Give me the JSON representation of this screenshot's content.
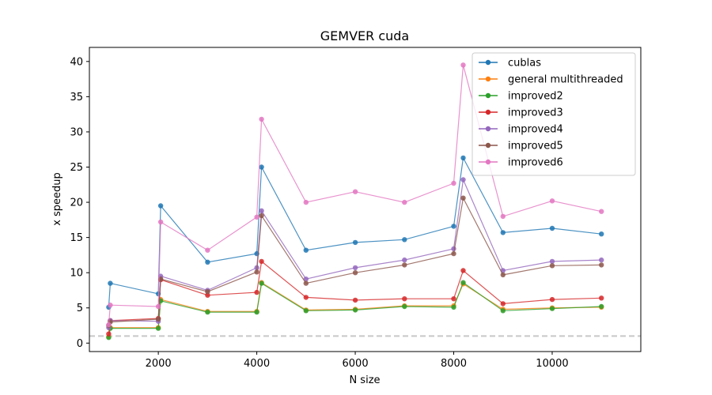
{
  "chart_data": {
    "type": "line",
    "title": "GEMVER cuda",
    "xlabel": "N size",
    "ylabel": "x speedup",
    "xlim": [
      600,
      11800
    ],
    "ylim": [
      -1.2,
      42
    ],
    "xticks": [
      2000,
      4000,
      6000,
      8000,
      10000
    ],
    "yticks": [
      0,
      5,
      10,
      15,
      20,
      25,
      30,
      35,
      40
    ],
    "reference_line": {
      "y": 1,
      "style": "dashed",
      "color": "#c8c8c8"
    },
    "legend_position": "top-right",
    "x": [
      992,
      1024,
      2000,
      2048,
      3000,
      4000,
      4096,
      5000,
      6000,
      7000,
      8000,
      8192,
      9000,
      10000,
      11000
    ],
    "series": [
      {
        "name": "cublas",
        "color": "#1f77b4",
        "values": [
          5.1,
          8.5,
          7.0,
          19.5,
          11.5,
          12.7,
          25.0,
          13.2,
          14.3,
          14.7,
          16.6,
          26.3,
          15.7,
          16.3,
          15.5
        ]
      },
      {
        "name": "general multithreaded",
        "color": "#ff7f0e",
        "values": [
          0.9,
          2.2,
          2.2,
          6.2,
          4.5,
          4.5,
          8.6,
          4.7,
          4.8,
          5.3,
          5.3,
          8.4,
          4.8,
          5.0,
          5.1
        ]
      },
      {
        "name": "improved2",
        "color": "#2ca02c",
        "values": [
          0.8,
          2.1,
          2.1,
          6.0,
          4.4,
          4.4,
          8.5,
          4.6,
          4.7,
          5.2,
          5.1,
          8.6,
          4.6,
          4.9,
          5.2
        ]
      },
      {
        "name": "improved3",
        "color": "#d62728",
        "values": [
          1.3,
          3.2,
          3.5,
          9.0,
          6.8,
          7.2,
          11.6,
          6.5,
          6.1,
          6.3,
          6.3,
          10.3,
          5.6,
          6.2,
          6.4
        ]
      },
      {
        "name": "improved4",
        "color": "#9467bd",
        "values": [
          2.2,
          3.2,
          3.1,
          9.5,
          7.5,
          10.7,
          18.8,
          9.1,
          10.7,
          11.8,
          13.4,
          23.2,
          10.3,
          11.6,
          11.8
        ]
      },
      {
        "name": "improved5",
        "color": "#8c564b",
        "values": [
          2.5,
          3.0,
          3.4,
          9.1,
          7.3,
          10.1,
          18.1,
          8.5,
          10.0,
          11.1,
          12.7,
          20.6,
          9.7,
          11.0,
          11.1
        ]
      },
      {
        "name": "improved6",
        "color": "#e377c2",
        "values": [
          2.6,
          5.4,
          5.2,
          17.2,
          13.2,
          17.9,
          31.8,
          20.0,
          21.5,
          20.0,
          22.7,
          39.5,
          18.0,
          20.2,
          18.7
        ]
      }
    ]
  }
}
